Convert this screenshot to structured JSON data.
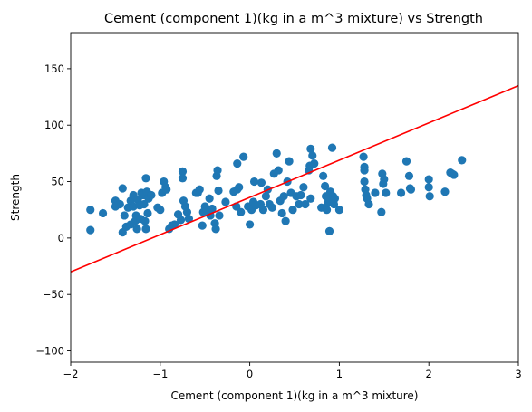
{
  "chart_data": {
    "type": "scatter",
    "title": "Cement (component 1)(kg in a m^3 mixture) vs Strength",
    "xlabel": "Cement (component 1)(kg in a m^3 mixture)",
    "ylabel": "Strength",
    "xlim": [
      -2,
      3
    ],
    "ylim": [
      -110,
      182
    ],
    "xticks": [
      -2,
      -1,
      0,
      1,
      2,
      3
    ],
    "xtick_labels": [
      "−2",
      "−1",
      "0",
      "1",
      "2",
      "3"
    ],
    "yticks": [
      -100,
      -50,
      0,
      50,
      100,
      150
    ],
    "ytick_labels": [
      "−100",
      "−50",
      "0",
      "50",
      "100",
      "150"
    ],
    "grid": false,
    "colors": {
      "points": "#1f77b4",
      "line": "#ff0000",
      "axes": "#000000"
    },
    "points": [
      [
        -1.78,
        25
      ],
      [
        -1.78,
        7
      ],
      [
        -1.64,
        22
      ],
      [
        -1.5,
        33
      ],
      [
        -1.5,
        28
      ],
      [
        -1.45,
        30
      ],
      [
        -1.42,
        44
      ],
      [
        -1.42,
        5
      ],
      [
        -1.4,
        20
      ],
      [
        -1.38,
        10
      ],
      [
        -1.36,
        27
      ],
      [
        -1.33,
        33
      ],
      [
        -1.33,
        12
      ],
      [
        -1.3,
        38
      ],
      [
        -1.3,
        28
      ],
      [
        -1.28,
        15
      ],
      [
        -1.27,
        20
      ],
      [
        -1.26,
        8
      ],
      [
        -1.25,
        34
      ],
      [
        -1.23,
        29
      ],
      [
        -1.22,
        17
      ],
      [
        -1.21,
        40
      ],
      [
        -1.19,
        38
      ],
      [
        -1.18,
        30
      ],
      [
        -1.17,
        15
      ],
      [
        -1.16,
        53
      ],
      [
        -1.16,
        8
      ],
      [
        -1.15,
        41
      ],
      [
        -1.14,
        22
      ],
      [
        -1.13,
        35
      ],
      [
        -1.1,
        38
      ],
      [
        -1.03,
        27
      ],
      [
        -1.0,
        25
      ],
      [
        -0.98,
        40
      ],
      [
        -0.96,
        50
      ],
      [
        -0.94,
        45
      ],
      [
        -0.93,
        43
      ],
      [
        -0.9,
        8
      ],
      [
        -0.87,
        11
      ],
      [
        -0.84,
        12
      ],
      [
        -0.8,
        21
      ],
      [
        -0.77,
        16
      ],
      [
        -0.75,
        59
      ],
      [
        -0.75,
        53
      ],
      [
        -0.74,
        33
      ],
      [
        -0.72,
        28
      ],
      [
        -0.7,
        23
      ],
      [
        -0.68,
        17
      ],
      [
        -0.6,
        40
      ],
      [
        -0.58,
        40
      ],
      [
        -0.56,
        43
      ],
      [
        -0.53,
        11
      ],
      [
        -0.52,
        23
      ],
      [
        -0.5,
        28
      ],
      [
        -0.48,
        25
      ],
      [
        -0.45,
        35
      ],
      [
        -0.44,
        20
      ],
      [
        -0.42,
        26
      ],
      [
        -0.39,
        13
      ],
      [
        -0.38,
        8
      ],
      [
        -0.37,
        55
      ],
      [
        -0.36,
        60
      ],
      [
        -0.35,
        42
      ],
      [
        -0.34,
        20
      ],
      [
        -0.27,
        32
      ],
      [
        -0.18,
        41
      ],
      [
        -0.15,
        28
      ],
      [
        -0.14,
        43
      ],
      [
        -0.14,
        66
      ],
      [
        -0.12,
        45
      ],
      [
        -0.1,
        23
      ],
      [
        -0.07,
        72
      ],
      [
        -0.02,
        28
      ],
      [
        0.0,
        12
      ],
      [
        0.02,
        25
      ],
      [
        0.04,
        32
      ],
      [
        0.05,
        50
      ],
      [
        0.07,
        29
      ],
      [
        0.12,
        30
      ],
      [
        0.13,
        49
      ],
      [
        0.15,
        25
      ],
      [
        0.18,
        37
      ],
      [
        0.2,
        43
      ],
      [
        0.22,
        30
      ],
      [
        0.25,
        27
      ],
      [
        0.27,
        57
      ],
      [
        0.3,
        75
      ],
      [
        0.32,
        60
      ],
      [
        0.34,
        33
      ],
      [
        0.36,
        22
      ],
      [
        0.38,
        37
      ],
      [
        0.4,
        15
      ],
      [
        0.42,
        50
      ],
      [
        0.44,
        68
      ],
      [
        0.46,
        40
      ],
      [
        0.48,
        25
      ],
      [
        0.52,
        37
      ],
      [
        0.55,
        30
      ],
      [
        0.57,
        38
      ],
      [
        0.6,
        45
      ],
      [
        0.62,
        30
      ],
      [
        0.66,
        60
      ],
      [
        0.67,
        64
      ],
      [
        0.68,
        35
      ],
      [
        0.68,
        79
      ],
      [
        0.7,
        73
      ],
      [
        0.72,
        66
      ],
      [
        0.8,
        27
      ],
      [
        0.82,
        55
      ],
      [
        0.84,
        46
      ],
      [
        0.85,
        37
      ],
      [
        0.86,
        25
      ],
      [
        0.87,
        31
      ],
      [
        0.88,
        35
      ],
      [
        0.89,
        6
      ],
      [
        0.9,
        41
      ],
      [
        0.92,
        80
      ],
      [
        0.93,
        37
      ],
      [
        0.94,
        30
      ],
      [
        0.95,
        35
      ],
      [
        1.0,
        25
      ],
      [
        1.27,
        72
      ],
      [
        1.28,
        60
      ],
      [
        1.28,
        63
      ],
      [
        1.28,
        50
      ],
      [
        1.29,
        43
      ],
      [
        1.3,
        38
      ],
      [
        1.31,
        35
      ],
      [
        1.33,
        30
      ],
      [
        1.4,
        40
      ],
      [
        1.47,
        23
      ],
      [
        1.48,
        57
      ],
      [
        1.49,
        48
      ],
      [
        1.5,
        52
      ],
      [
        1.52,
        40
      ],
      [
        1.69,
        40
      ],
      [
        1.75,
        68
      ],
      [
        1.78,
        55
      ],
      [
        1.79,
        44
      ],
      [
        1.8,
        43
      ],
      [
        2.0,
        52
      ],
      [
        2.0,
        45
      ],
      [
        2.01,
        37
      ],
      [
        2.18,
        41
      ],
      [
        2.24,
        58
      ],
      [
        2.26,
        57
      ],
      [
        2.28,
        56
      ],
      [
        2.37,
        69
      ]
    ],
    "regression_line": {
      "x": [
        -2,
        3
      ],
      "y": [
        -30,
        135
      ]
    }
  }
}
